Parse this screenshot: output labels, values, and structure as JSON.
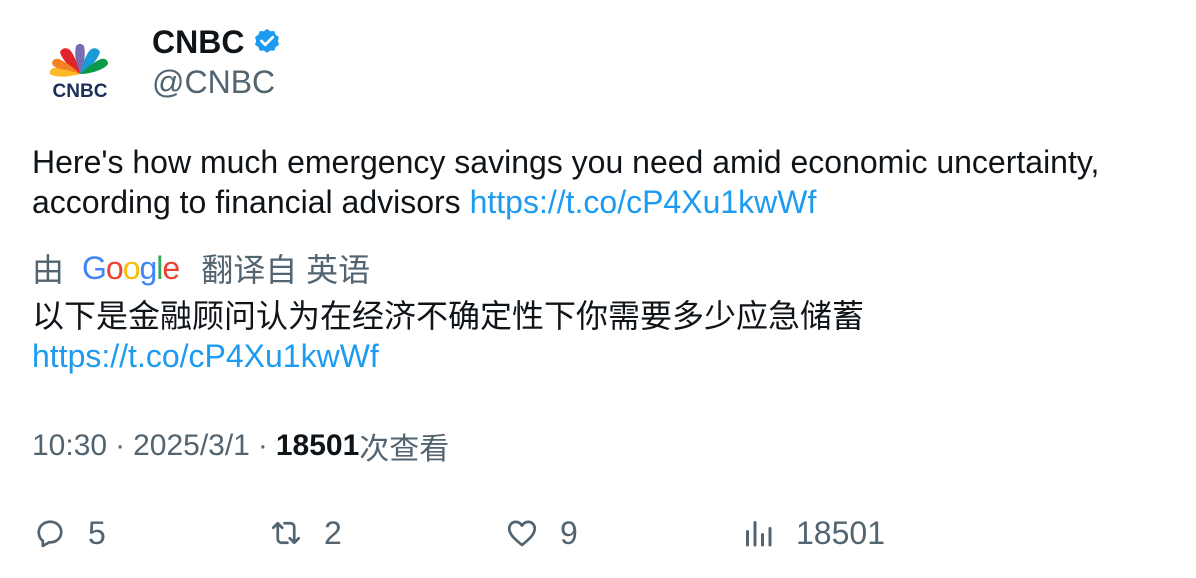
{
  "author": {
    "display_name": "CNBC",
    "handle": "@CNBC",
    "verified": true,
    "avatar_text": "CNBC",
    "verified_color": "#1d9bf0"
  },
  "tweet": {
    "text": "Here's how much emergency savings you need amid economic uncertainty, according to financial advisors ",
    "link": "https://t.co/cP4Xu1kwWf"
  },
  "translation": {
    "by_label": "由",
    "provider": "Google",
    "translated_from": "翻译自 英语",
    "text": "以下是金融顾问认为在经济不确定性下你需要多少应急储蓄",
    "link": "https://t.co/cP4Xu1kwWf"
  },
  "meta": {
    "time": "10:30",
    "separator": "·",
    "date": "2025/3/1",
    "views_count": "18501",
    "views_label": "次查看"
  },
  "actions": {
    "reply_count": "5",
    "retweet_count": "2",
    "like_count": "9",
    "views_count": "18501"
  },
  "colors": {
    "link": "#1d9bf0",
    "text": "#0f1419",
    "secondary": "#536471"
  }
}
